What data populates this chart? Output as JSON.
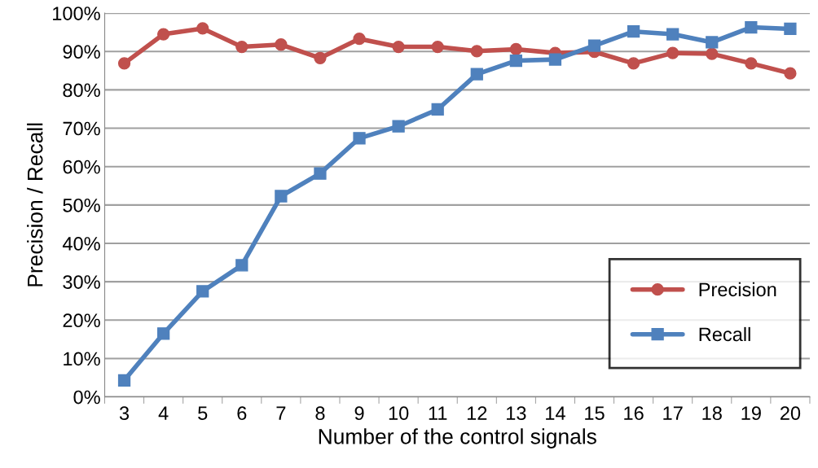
{
  "chart_data": {
    "type": "line",
    "xlabel": "Number of the control signals",
    "ylabel": "Precision / Recall",
    "categories": [
      "3",
      "4",
      "5",
      "6",
      "7",
      "8",
      "9",
      "10",
      "11",
      "12",
      "13",
      "14",
      "15",
      "16",
      "17",
      "18",
      "19",
      "20"
    ],
    "series": [
      {
        "name": "Precision",
        "color": "#c0504d",
        "marker": "circle",
        "values": [
          86.9,
          94.5,
          96.0,
          91.2,
          91.8,
          88.3,
          93.3,
          91.2,
          91.2,
          90.1,
          90.6,
          89.6,
          89.9,
          86.9,
          89.6,
          89.4,
          86.9,
          84.3
        ]
      },
      {
        "name": "Recall",
        "color": "#4f81bd",
        "marker": "square",
        "values": [
          4.3,
          16.5,
          27.5,
          34.3,
          52.3,
          58.2,
          67.4,
          70.5,
          74.9,
          84.1,
          87.6,
          87.9,
          91.5,
          95.2,
          94.5,
          92.4,
          96.3,
          95.9
        ]
      }
    ],
    "ylim": [
      0,
      100
    ],
    "yticks": [
      {
        "value": 0,
        "label": "0%"
      },
      {
        "value": 10,
        "label": "10%"
      },
      {
        "value": 20,
        "label": "20%"
      },
      {
        "value": 30,
        "label": "30%"
      },
      {
        "value": 40,
        "label": "40%"
      },
      {
        "value": 50,
        "label": "50%"
      },
      {
        "value": 60,
        "label": "60%"
      },
      {
        "value": 70,
        "label": "70%"
      },
      {
        "value": 80,
        "label": "80%"
      },
      {
        "value": 90,
        "label": "90%"
      },
      {
        "value": 100,
        "label": "100%"
      }
    ],
    "grid": "y",
    "legend": "bottom right",
    "line_style": "solid"
  }
}
